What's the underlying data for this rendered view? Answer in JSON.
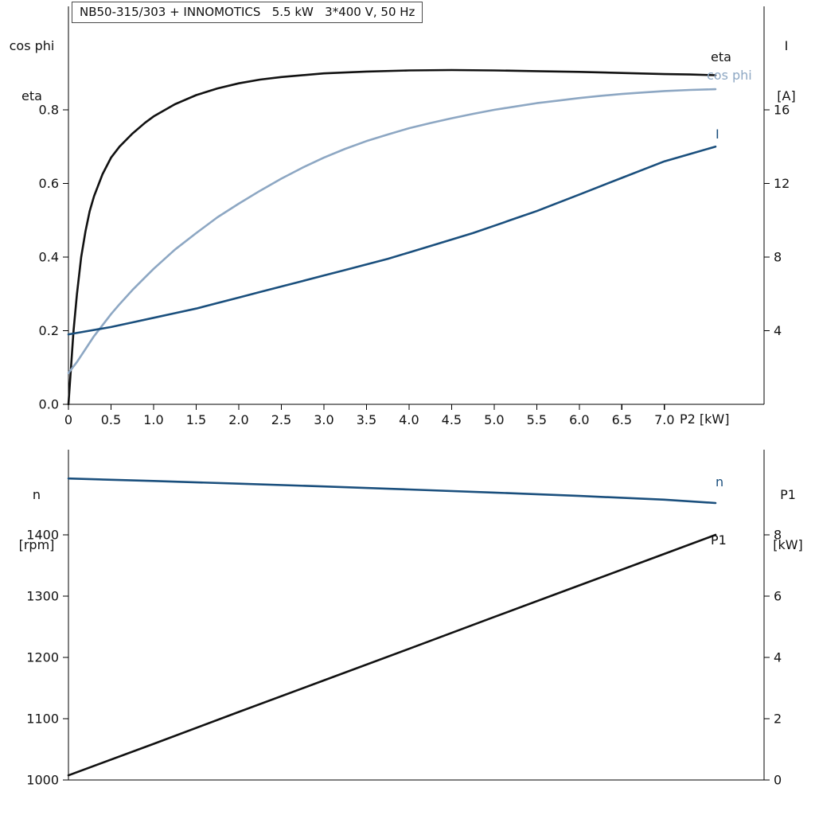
{
  "colors": {
    "curve_black": "#111111",
    "curve_light_blue": "#8da7c3",
    "curve_dark_blue": "#1a4f7d",
    "axis": "#000000",
    "background": "#ffffff"
  },
  "chart_data": [
    {
      "id": "motor-performance-chart",
      "type": "line",
      "title_box": "NB50-315/303 + INNOMOTICS   5.5 kW   3*400 V, 50 Hz",
      "left_axis": {
        "title_lines": [
          "cos phi",
          "eta"
        ],
        "range": [
          0,
          1.081
        ],
        "ticks": [
          {
            "value": 0.0,
            "label": "0.0"
          },
          {
            "value": 0.2,
            "label": "0.2"
          },
          {
            "value": 0.4,
            "label": "0.4"
          },
          {
            "value": 0.6,
            "label": "0.6"
          },
          {
            "value": 0.8,
            "label": "0.8"
          }
        ]
      },
      "right_axis": {
        "title_lines": [
          "I",
          "[A]"
        ],
        "range": [
          0,
          21.62
        ],
        "ticks": [
          {
            "value": 4,
            "label": "4"
          },
          {
            "value": 8,
            "label": "8"
          },
          {
            "value": 12,
            "label": "12"
          },
          {
            "value": 16,
            "label": "16"
          }
        ]
      },
      "x_axis": {
        "label": "P2 [kW]",
        "range": [
          0,
          8.17
        ],
        "ticks": [
          {
            "value": 0,
            "label": "0"
          },
          {
            "value": 0.5,
            "label": "0.5"
          },
          {
            "value": 1.0,
            "label": "1.0"
          },
          {
            "value": 1.5,
            "label": "1.5"
          },
          {
            "value": 2.0,
            "label": "2.0"
          },
          {
            "value": 2.5,
            "label": "2.5"
          },
          {
            "value": 3.0,
            "label": "3.0"
          },
          {
            "value": 3.5,
            "label": "3.5"
          },
          {
            "value": 4.0,
            "label": "4.0"
          },
          {
            "value": 4.5,
            "label": "4.5"
          },
          {
            "value": 5.0,
            "label": "5.0"
          },
          {
            "value": 5.5,
            "label": "5.5"
          },
          {
            "value": 6.0,
            "label": "6.0"
          },
          {
            "value": 6.5,
            "label": "6.5"
          },
          {
            "value": 7.0,
            "label": "7.0"
          }
        ]
      },
      "series": [
        {
          "name": "eta",
          "label": "eta",
          "axis": "left",
          "color": "#111111",
          "x": [
            0,
            0.03,
            0.06,
            0.1,
            0.15,
            0.2,
            0.25,
            0.3,
            0.4,
            0.5,
            0.6,
            0.75,
            0.9,
            1.0,
            1.25,
            1.5,
            1.75,
            2.0,
            2.25,
            2.5,
            3.0,
            3.5,
            4.0,
            4.5,
            5.0,
            5.5,
            6.0,
            6.5,
            7.0,
            7.3,
            7.6
          ],
          "y": [
            0,
            0.1,
            0.2,
            0.3,
            0.4,
            0.47,
            0.525,
            0.565,
            0.625,
            0.67,
            0.7,
            0.735,
            0.765,
            0.782,
            0.815,
            0.84,
            0.858,
            0.872,
            0.882,
            0.889,
            0.899,
            0.904,
            0.907,
            0.908,
            0.907,
            0.905,
            0.903,
            0.9,
            0.897,
            0.896,
            0.894
          ]
        },
        {
          "name": "cos phi",
          "label": "cos phi",
          "axis": "left",
          "color": "#8da7c3",
          "x": [
            0,
            0.1,
            0.2,
            0.3,
            0.4,
            0.5,
            0.6,
            0.75,
            0.9,
            1.0,
            1.25,
            1.5,
            1.75,
            2.0,
            2.25,
            2.5,
            2.75,
            3.0,
            3.25,
            3.5,
            3.75,
            4.0,
            4.25,
            4.5,
            4.75,
            5.0,
            5.25,
            5.5,
            5.75,
            6.0,
            6.25,
            6.5,
            6.75,
            7.0,
            7.3,
            7.6
          ],
          "y": [
            0.085,
            0.115,
            0.15,
            0.185,
            0.215,
            0.245,
            0.272,
            0.31,
            0.345,
            0.368,
            0.42,
            0.465,
            0.508,
            0.545,
            0.58,
            0.613,
            0.643,
            0.67,
            0.694,
            0.715,
            0.733,
            0.75,
            0.764,
            0.777,
            0.789,
            0.8,
            0.809,
            0.818,
            0.825,
            0.832,
            0.838,
            0.843,
            0.847,
            0.851,
            0.854,
            0.856
          ]
        },
        {
          "name": "I",
          "label": "I",
          "axis": "right",
          "color": "#1a4f7d",
          "x": [
            0,
            0.25,
            0.5,
            0.75,
            1.0,
            1.25,
            1.5,
            1.75,
            2.0,
            2.25,
            2.5,
            2.75,
            3.0,
            3.25,
            3.5,
            3.75,
            4.0,
            4.25,
            4.5,
            4.75,
            5.0,
            5.25,
            5.5,
            5.75,
            6.0,
            6.25,
            6.5,
            6.75,
            7.0,
            7.3,
            7.6
          ],
          "y": [
            3.8,
            4.0,
            4.2,
            4.45,
            4.7,
            4.95,
            5.2,
            5.5,
            5.8,
            6.1,
            6.4,
            6.7,
            7.0,
            7.3,
            7.6,
            7.9,
            8.25,
            8.6,
            8.95,
            9.3,
            9.7,
            10.1,
            10.5,
            10.95,
            11.4,
            11.85,
            12.3,
            12.75,
            13.2,
            13.6,
            14.0
          ]
        }
      ]
    },
    {
      "id": "speed-power-chart",
      "type": "line",
      "left_axis": {
        "title_lines": [
          "n",
          "[rpm]"
        ],
        "range": [
          1000,
          1539
        ],
        "ticks": [
          {
            "value": 1000,
            "label": "1000"
          },
          {
            "value": 1100,
            "label": "1100"
          },
          {
            "value": 1200,
            "label": "1200"
          },
          {
            "value": 1300,
            "label": "1300"
          },
          {
            "value": 1400,
            "label": "1400"
          }
        ]
      },
      "right_axis": {
        "title_lines": [
          "P1",
          "[kW]"
        ],
        "range": [
          0,
          10.78
        ],
        "ticks": [
          {
            "value": 0,
            "label": "0"
          },
          {
            "value": 2,
            "label": "2"
          },
          {
            "value": 4,
            "label": "4"
          },
          {
            "value": 6,
            "label": "6"
          },
          {
            "value": 8,
            "label": "8"
          }
        ]
      },
      "x_axis": {
        "label": "",
        "range": [
          0,
          8.17
        ],
        "ticks": []
      },
      "series": [
        {
          "name": "n",
          "label": "n",
          "axis": "left",
          "color": "#1a4f7d",
          "x": [
            0,
            1,
            2,
            3,
            4,
            5,
            6,
            7,
            7.6
          ],
          "y": [
            1492,
            1488,
            1483.5,
            1479,
            1474,
            1469,
            1463.5,
            1457.5,
            1452
          ]
        },
        {
          "name": "P1",
          "label": "P1",
          "axis": "right",
          "color": "#111111",
          "x": [
            0,
            1,
            2,
            3,
            4,
            5,
            6,
            7,
            7.6
          ],
          "y": [
            0.15,
            1.18,
            2.22,
            3.25,
            4.28,
            5.32,
            6.35,
            7.38,
            8.0
          ]
        }
      ]
    }
  ]
}
